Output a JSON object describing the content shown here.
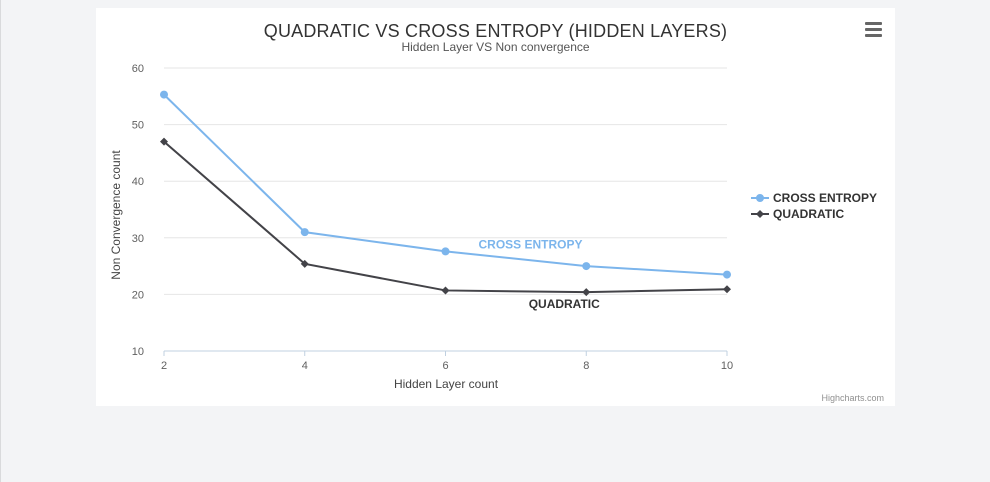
{
  "chart_data": {
    "type": "line",
    "title": "QUADRATIC VS CROSS ENTROPY (HIDDEN LAYERS)",
    "subtitle": "Hidden Layer VS Non convergence",
    "xlabel": "Hidden Layer count",
    "ylabel": "Non Convergence count",
    "x": [
      2,
      4,
      6,
      8,
      10
    ],
    "xlim": [
      2,
      10
    ],
    "ylim": [
      10,
      60
    ],
    "yticks": [
      10,
      20,
      30,
      40,
      50,
      60
    ],
    "grid": true,
    "legend_position": "right",
    "series": [
      {
        "name": "CROSS ENTROPY",
        "color": "#7cb5ec",
        "marker": "circle",
        "values": [
          55.3,
          31.0,
          27.6,
          25.0,
          23.5
        ],
        "inline_label": "CROSS ENTROPY"
      },
      {
        "name": "QUADRATIC",
        "color": "#434348",
        "marker": "diamond",
        "values": [
          47.0,
          25.4,
          20.7,
          20.4,
          20.9
        ],
        "inline_label": "QUADRATIC"
      }
    ]
  },
  "toolbar": {
    "menu_icon": "hamburger-menu-icon"
  },
  "credits": "Highcharts.com"
}
